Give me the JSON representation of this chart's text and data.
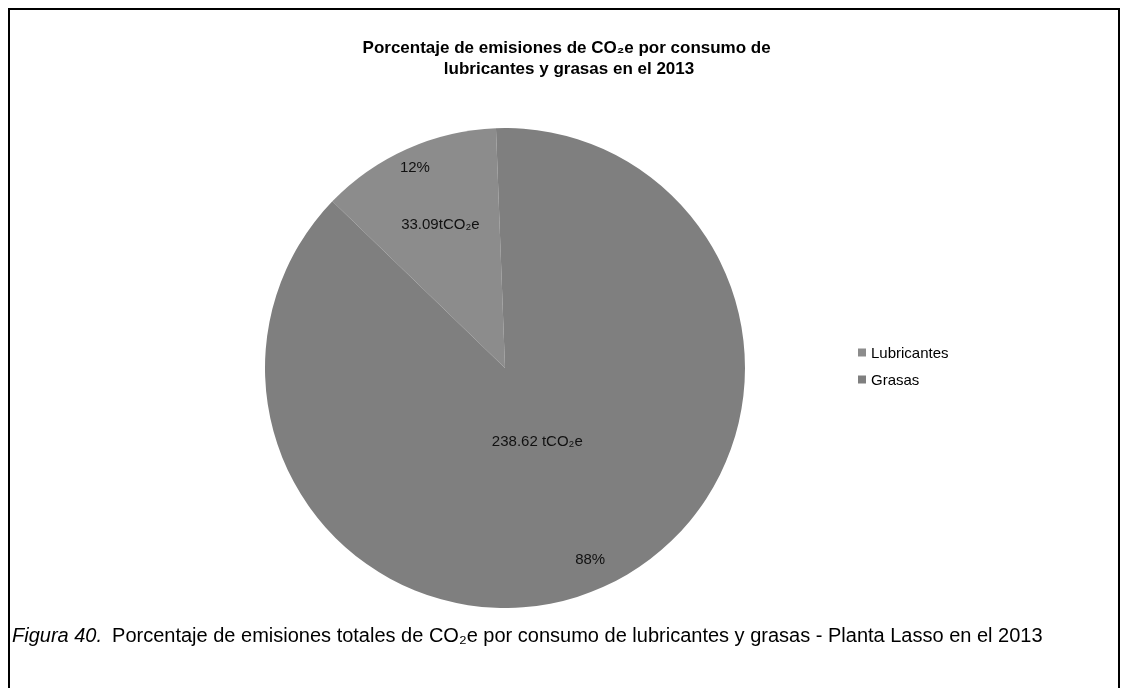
{
  "chart_data": {
    "type": "pie",
    "title": "Porcentaje de emisiones de CO₂e por consumo de lubricantes y grasas en el 2013",
    "categories": [
      "Lubricantes",
      "Grasas"
    ],
    "values": [
      33.09,
      238.62
    ],
    "colors": [
      "#8c8c8c",
      "#7f7f7f"
    ],
    "value_labels": [
      "33.09tCO₂e",
      "238.62 tCO₂e"
    ],
    "annotations": [
      {
        "text": "12%",
        "x": "Lubricantes"
      },
      {
        "text": "88%",
        "x": "Grasas"
      },
      "Figura 40.",
      "Porcentaje de emisiones totales de CO₂e por consumo de lubricantes y grasas - Planta Lasso en el 2013"
    ],
    "legend": "right"
  }
}
